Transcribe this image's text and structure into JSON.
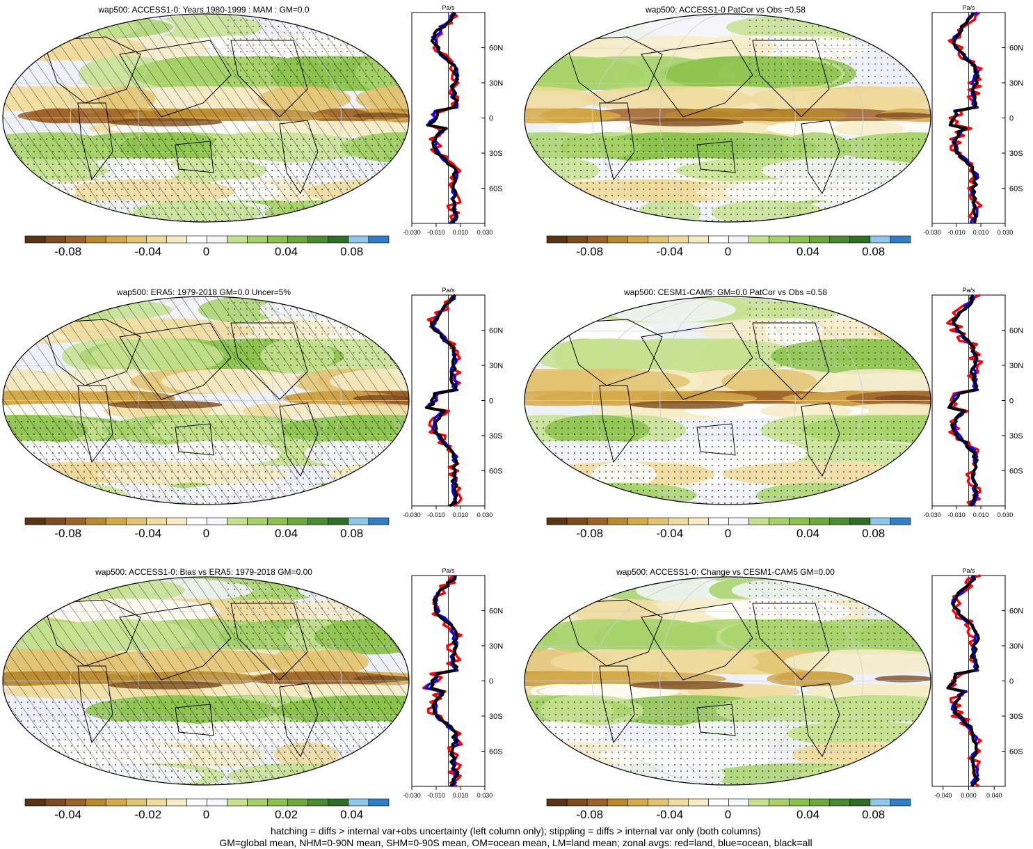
{
  "panels": [
    {
      "title": "wap500: ACCESS1-0: Years 1980-1999 : MAM : GM=0.0",
      "colorbar_ticks": [
        "-0.08",
        "-0.04",
        "0",
        "0.04",
        "0.08"
      ],
      "zonal_ticks": [
        "-0.030",
        "-0.010",
        "0.010",
        "0.030"
      ],
      "hatching": true
    },
    {
      "title": "wap500: ACCESS1-0 PatCor vs Obs =0.58",
      "colorbar_ticks": [
        "-0.08",
        "-0.04",
        "0",
        "0.04",
        "0.08"
      ],
      "zonal_ticks": [
        "-0.030",
        "-0.010",
        "0.010",
        "0.030"
      ],
      "hatching": false
    },
    {
      "title": "wap500: ERA5: 1979-2018 GM=0.0 Uncer=5%",
      "colorbar_ticks": [
        "-0.08",
        "-0.04",
        "0",
        "0.04",
        "0.08"
      ],
      "zonal_ticks": [
        "-0.030",
        "-0.010",
        "0.010",
        "0.030"
      ],
      "hatching": true
    },
    {
      "title": "wap500: CESM1-CAM5: GM=0.0 PatCor vs Obs =0.58",
      "colorbar_ticks": [
        "-0.08",
        "-0.04",
        "0",
        "0.04",
        "0.08"
      ],
      "zonal_ticks": [
        "-0.030",
        "-0.010",
        "0.010",
        "0.030"
      ],
      "hatching": false
    },
    {
      "title": "wap500: ACCESS1-0: Bias vs ERA5: 1979-2018 GM=0.00",
      "colorbar_ticks": [
        "-0.04",
        "-0.02",
        "0",
        "0.02",
        "0.04"
      ],
      "zonal_ticks": [
        "-0.030",
        "-0.010",
        "0.010",
        "0.030"
      ],
      "hatching": true
    },
    {
      "title": "wap500: ACCESS1-0: Change vs CESM1-CAM5 GM=0.00",
      "colorbar_ticks": [
        "-0.08",
        "-0.04",
        "0",
        "0.04",
        "0.08"
      ],
      "zonal_ticks": [
        "-0.040",
        "0.000",
        "0.040"
      ],
      "hatching": false
    }
  ],
  "zonal_unit": "Pa/s",
  "lat_labels": [
    "60N",
    "30N",
    "0",
    "30S",
    "60S"
  ],
  "colors": {
    "palette": [
      "#5a3513",
      "#7d4b1e",
      "#9c6228",
      "#b88a2e",
      "#d3a94a",
      "#e2c371",
      "#efdb9b",
      "#f6ecc8",
      "#ffffff",
      "#f3f6fb",
      "#c6e28f",
      "#a7d26a",
      "#8bc24b",
      "#6aa93a",
      "#4c8c30",
      "#2f6f25",
      "#8fc7ea",
      "#2f7fc8"
    ],
    "land": "#ff0000",
    "ocean": "#0000ff",
    "all": "#000000"
  },
  "footer": {
    "line1": "hatching = diffs > internal var+obs uncertainty (left column only); stippling = diffs > internal var only (both columns)",
    "line2": "GM=global mean, NHM=0-90N mean, SHM=0-90S mean, OM=ocean mean, LM=land mean; zonal avgs: red=land, blue=ocean, black=all"
  }
}
